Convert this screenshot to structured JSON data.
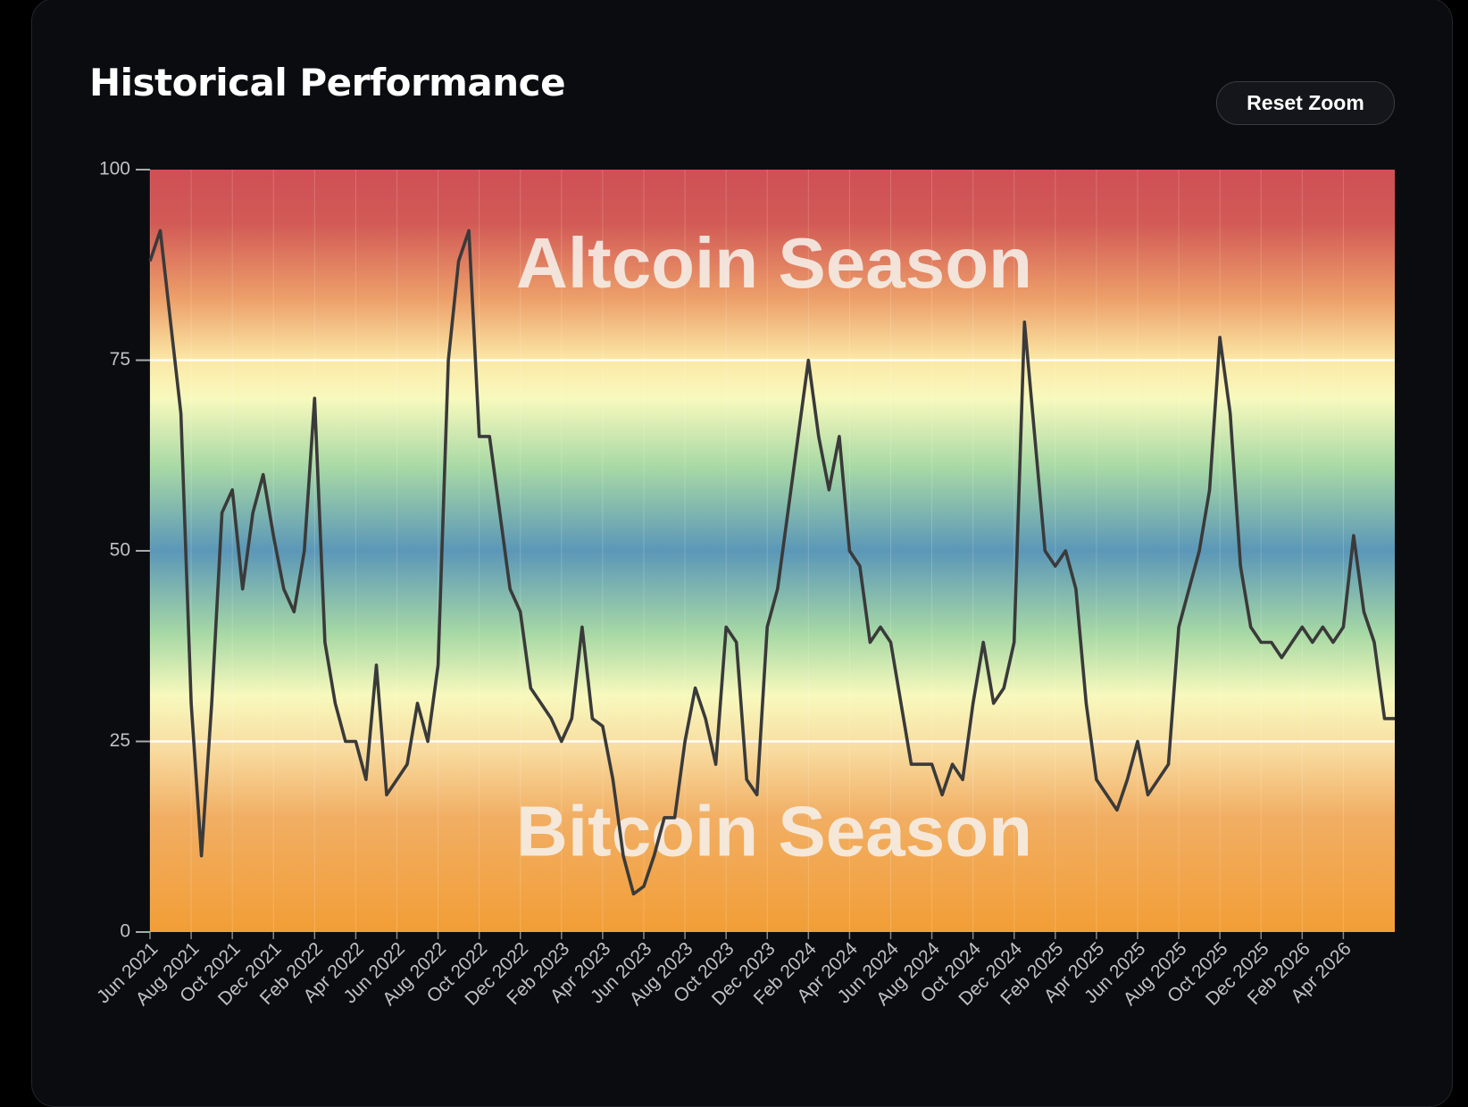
{
  "header": {
    "title": "Historical Performance",
    "button": "Reset Zoom"
  },
  "chart_data": {
    "type": "line",
    "annotations": [
      "Altcoin Season",
      "Bitcoin Season"
    ],
    "categories": [
      "Jun 2021",
      null,
      null,
      null,
      "Aug 2021",
      null,
      null,
      null,
      "Oct 2021",
      null,
      null,
      null,
      "Dec 2021",
      null,
      null,
      null,
      "Feb 2022",
      null,
      null,
      null,
      "Apr 2022",
      null,
      null,
      null,
      "Jun 2022",
      null,
      null,
      null,
      "Aug 2022",
      null,
      null,
      null,
      "Oct 2022",
      null,
      null,
      null,
      "Dec 2022",
      null,
      null,
      null,
      "Feb 2023",
      null,
      null,
      null,
      "Apr 2023",
      null,
      null,
      null,
      "Jun 2023",
      null,
      null,
      null,
      "Aug 2023",
      null,
      null,
      null,
      "Oct 2023",
      null,
      null,
      null,
      "Dec 2023",
      null,
      null,
      null,
      "Feb 2024",
      null,
      null,
      null,
      "Apr 2024",
      null,
      null,
      null,
      "Jun 2024",
      null,
      null,
      null,
      "Aug 2024",
      null,
      null,
      null,
      "Oct 2024",
      null,
      null,
      null,
      "Dec 2024",
      null,
      null,
      null,
      "Feb 2025",
      null,
      null,
      null,
      "Apr 2025",
      null,
      null,
      null,
      "Jun 2025",
      null,
      null,
      null,
      "Aug 2025",
      null,
      null,
      null,
      "Oct 2025",
      null,
      null,
      null,
      "Dec 2025",
      null,
      null,
      null,
      "Feb 2026",
      null,
      null,
      null,
      "Apr 2026",
      null,
      null,
      null,
      null,
      null
    ],
    "values": [
      88,
      92,
      80,
      68,
      30,
      10,
      30,
      55,
      58,
      45,
      55,
      60,
      52,
      45,
      42,
      50,
      70,
      38,
      30,
      25,
      25,
      20,
      35,
      18,
      20,
      22,
      30,
      25,
      35,
      75,
      88,
      92,
      65,
      65,
      55,
      45,
      42,
      32,
      30,
      28,
      25,
      28,
      40,
      28,
      27,
      20,
      10,
      5,
      6,
      10,
      15,
      15,
      25,
      32,
      28,
      22,
      40,
      38,
      20,
      18,
      40,
      45,
      55,
      65,
      75,
      65,
      58,
      65,
      50,
      48,
      38,
      40,
      38,
      30,
      22,
      22,
      22,
      18,
      22,
      20,
      30,
      38,
      30,
      32,
      38,
      80,
      65,
      50,
      48,
      50,
      45,
      30,
      20,
      18,
      16,
      20,
      25,
      18,
      20,
      22,
      40,
      45,
      50,
      58,
      78,
      68,
      48,
      40,
      38,
      38,
      36,
      38,
      40,
      38,
      40,
      38,
      40,
      52,
      42,
      38,
      28,
      28
    ],
    "color": "#3a3a3a",
    "ylim": [
      0,
      100
    ],
    "yticks": [
      0,
      25,
      50,
      75,
      100
    ],
    "reference_lines": [
      25,
      75
    ]
  }
}
